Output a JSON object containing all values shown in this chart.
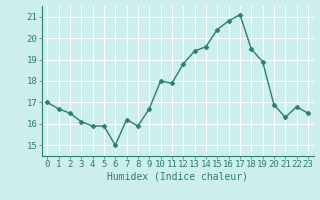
{
  "x": [
    0,
    1,
    2,
    3,
    4,
    5,
    6,
    7,
    8,
    9,
    10,
    11,
    12,
    13,
    14,
    15,
    16,
    17,
    18,
    19,
    20,
    21,
    22,
    23
  ],
  "y": [
    17.0,
    16.7,
    16.5,
    16.1,
    15.9,
    15.9,
    15.0,
    16.2,
    15.9,
    16.7,
    18.0,
    17.9,
    18.8,
    19.4,
    19.6,
    20.4,
    20.8,
    21.1,
    19.5,
    18.9,
    16.9,
    16.3,
    16.8,
    16.5
  ],
  "line_color": "#2e7d6e",
  "marker": "D",
  "markersize": 2.5,
  "bg_color": "#cceeed",
  "grid_color": "#ffffff",
  "xlabel": "Humidex (Indice chaleur)",
  "ylim": [
    14.5,
    21.5
  ],
  "xlim": [
    -0.5,
    23.5
  ],
  "yticks": [
    15,
    16,
    17,
    18,
    19,
    20,
    21
  ],
  "xticks": [
    0,
    1,
    2,
    3,
    4,
    5,
    6,
    7,
    8,
    9,
    10,
    11,
    12,
    13,
    14,
    15,
    16,
    17,
    18,
    19,
    20,
    21,
    22,
    23
  ],
  "tick_color": "#2e7d6e",
  "label_color": "#2e7d6e",
  "xlabel_fontsize": 7,
  "tick_fontsize": 6.5,
  "linewidth": 1.0
}
